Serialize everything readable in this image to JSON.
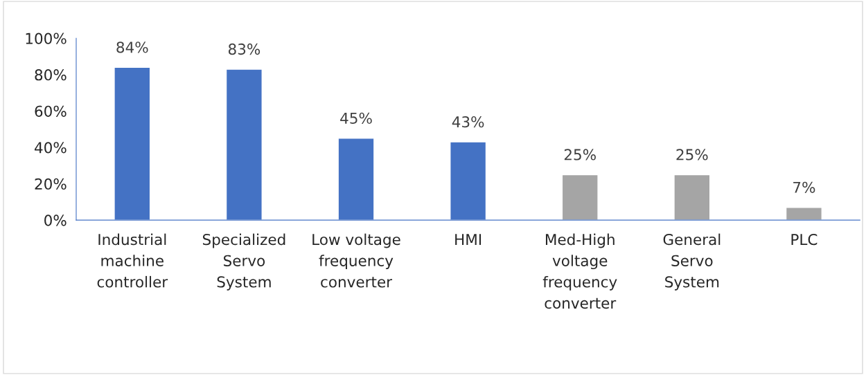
{
  "chart_data": {
    "type": "bar",
    "categories": [
      "Industrial machine controller",
      "Specialized Servo System",
      "Low voltage frequency converter",
      "HMI",
      "Med-High voltage frequency converter",
      "General Servo System",
      "PLC"
    ],
    "values": [
      84,
      83,
      45,
      43,
      25,
      25,
      7
    ],
    "colors": [
      "#4472c4",
      "#4472c4",
      "#4472c4",
      "#4472c4",
      "#a5a5a5",
      "#a5a5a5",
      "#a5a5a5"
    ],
    "ylim": [
      0,
      100
    ],
    "yticks": [
      {
        "value": 0,
        "label": "0%"
      },
      {
        "value": 20,
        "label": "20%"
      },
      {
        "value": 40,
        "label": "40%"
      },
      {
        "value": 60,
        "label": "60%"
      },
      {
        "value": 80,
        "label": "80%"
      },
      {
        "value": 100,
        "label": "100%"
      }
    ],
    "value_labels": [
      "84%",
      "83%",
      "45%",
      "43%",
      "25%",
      "25%",
      "7%"
    ],
    "grid": false,
    "legend": false
  }
}
